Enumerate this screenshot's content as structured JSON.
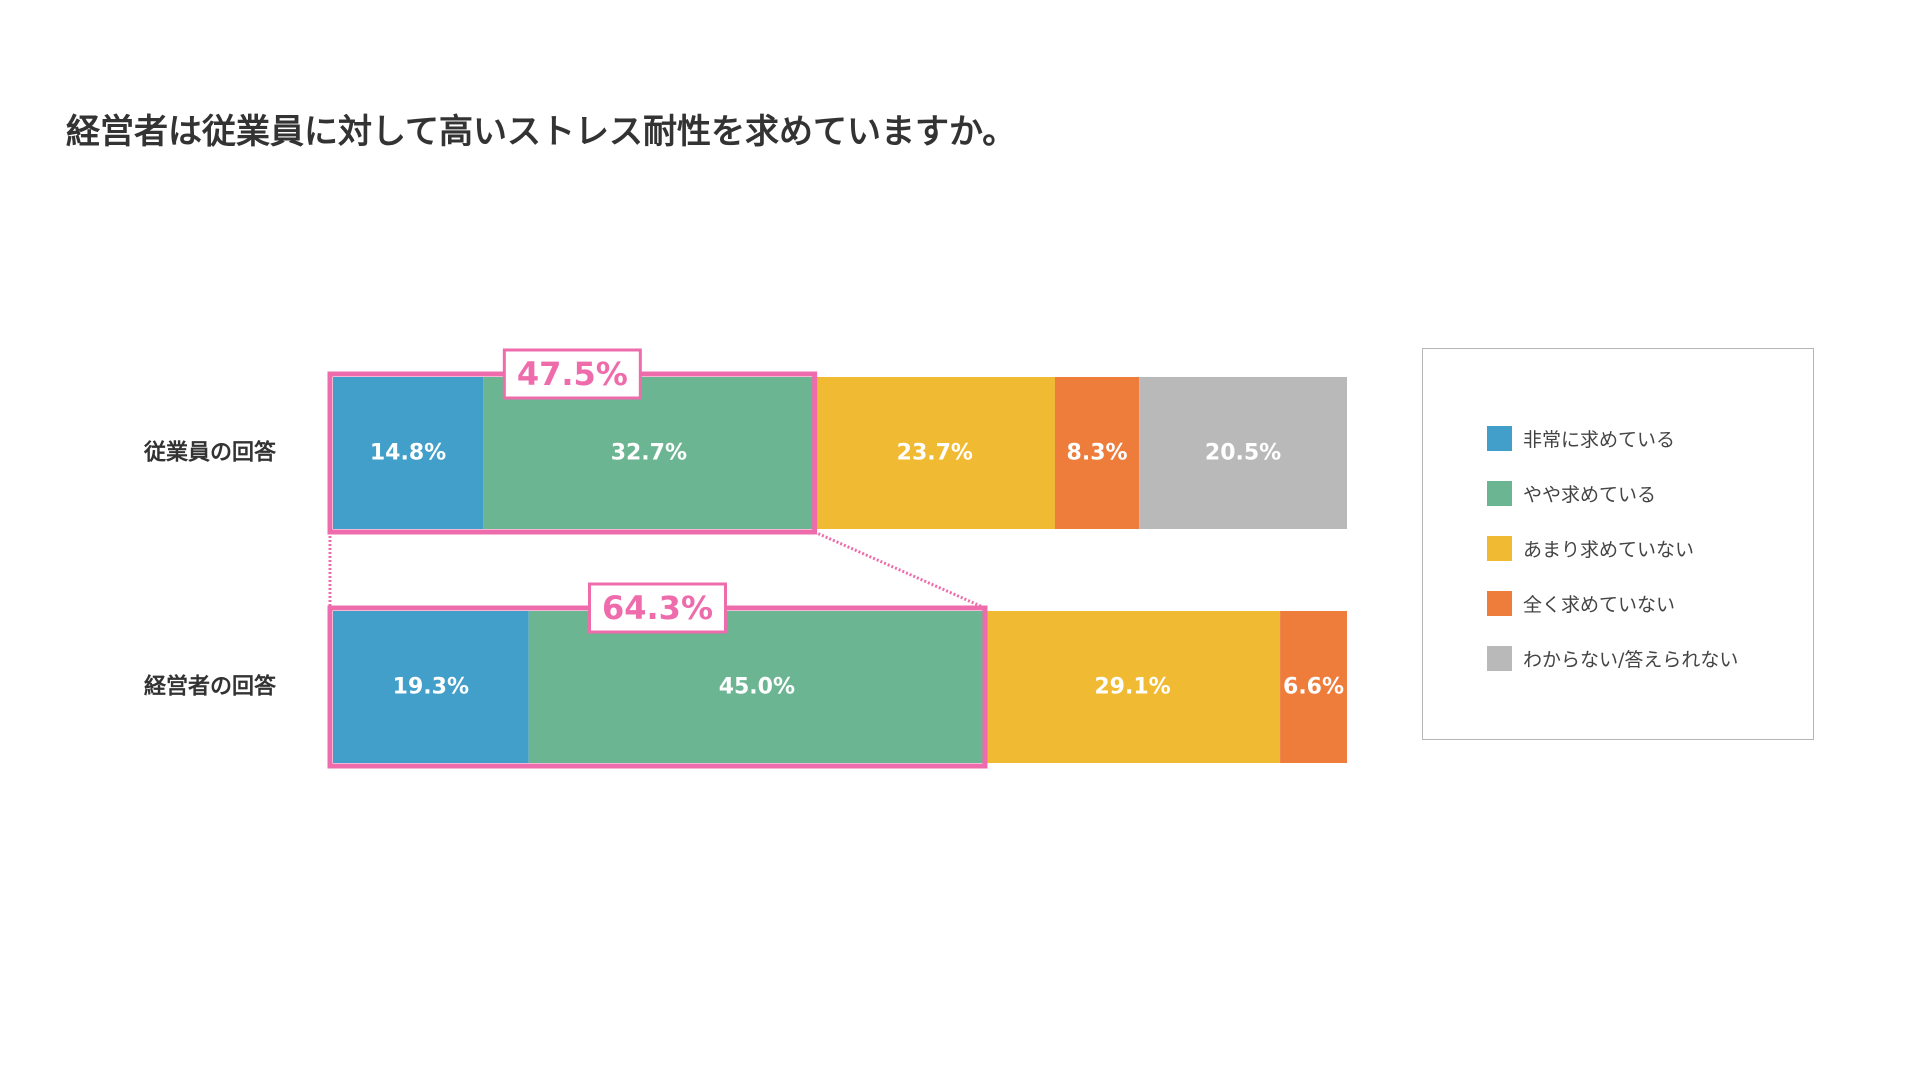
{
  "chart_data": {
    "type": "bar",
    "orientation": "horizontal",
    "stacked": true,
    "percent": true,
    "title": "経営者は従業員に対して高いストレス耐性を求めていますか。",
    "categories": [
      "従業員の回答",
      "経営者の回答"
    ],
    "series": [
      {
        "name": "非常に求めている",
        "color": "#419FC9",
        "values": [
          14.8,
          19.3
        ],
        "labels": [
          "14.8%",
          "19.3%"
        ]
      },
      {
        "name": "やや求めている",
        "color": "#6CB592",
        "values": [
          32.7,
          45.0
        ],
        "labels": [
          "32.7%",
          "45.0%"
        ]
      },
      {
        "name": "あまり求めていない",
        "color": "#F0BA32",
        "values": [
          23.7,
          29.1
        ],
        "labels": [
          "23.7%",
          "29.1%"
        ]
      },
      {
        "name": "全く求めていない",
        "color": "#EE7C3B",
        "values": [
          8.3,
          6.6
        ],
        "labels": [
          "8.3%",
          "6.6%"
        ]
      },
      {
        "name": "わからない/答えられない",
        "color": "#B9B9B9",
        "values": [
          20.5,
          0
        ],
        "labels": [
          "20.5%",
          ""
        ]
      }
    ],
    "highlights": [
      {
        "label": "47.5%",
        "value": 47.5
      },
      {
        "label": "64.3%",
        "value": 64.3
      }
    ],
    "highlight_color": "#EE6CAC",
    "legend_position": "right",
    "grid": false
  }
}
